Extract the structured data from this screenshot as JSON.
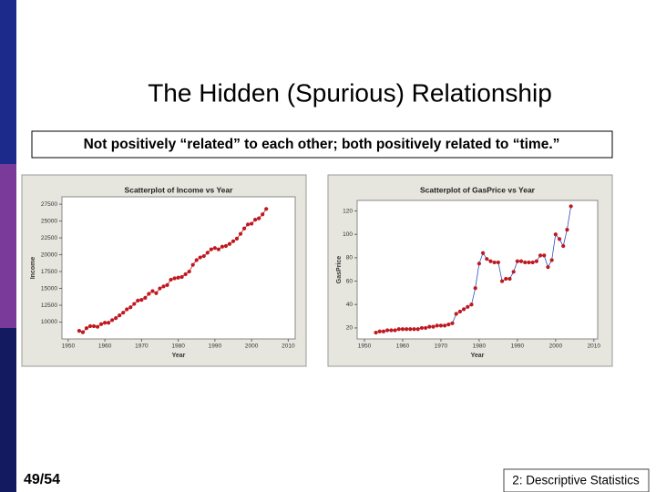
{
  "title": "The Hidden (Spurious) Relationship",
  "subtitle": "Not positively “related” to each other; both positively related to “time.”",
  "page": "49/54",
  "footer": "2: Descriptive Statistics",
  "chart_data": [
    {
      "type": "scatter",
      "title": "Scatterplot of Income vs Year",
      "xlabel": "Year",
      "ylabel": "Income",
      "color": "#c0181e",
      "line_color": "#c0181e",
      "x": [
        1953,
        1954,
        1955,
        1956,
        1957,
        1958,
        1959,
        1960,
        1961,
        1962,
        1963,
        1964,
        1965,
        1966,
        1967,
        1968,
        1969,
        1970,
        1971,
        1972,
        1973,
        1974,
        1975,
        1976,
        1977,
        1978,
        1979,
        1980,
        1981,
        1982,
        1983,
        1984,
        1985,
        1986,
        1987,
        1988,
        1989,
        1990,
        1991,
        1992,
        1993,
        1994,
        1995,
        1996,
        1997,
        1998,
        1999,
        2000,
        2001,
        2002,
        2003,
        2004
      ],
      "values": [
        8700,
        8500,
        9100,
        9400,
        9400,
        9300,
        9700,
        9900,
        9900,
        10300,
        10600,
        11000,
        11400,
        11900,
        12200,
        12700,
        13200,
        13300,
        13600,
        14200,
        14600,
        14300,
        15000,
        15300,
        15500,
        16300,
        16500,
        16600,
        16700,
        17100,
        17500,
        18500,
        19200,
        19600,
        19800,
        20300,
        20800,
        21000,
        20800,
        21200,
        21300,
        21600,
        22000,
        22400,
        23100,
        23900,
        24500,
        24600,
        25200,
        25400,
        26000,
        26800
      ],
      "xlim": [
        1948.3,
        2011.9
      ],
      "ylim": [
        7500,
        28600
      ],
      "xticks": [
        1950,
        1960,
        1970,
        1980,
        1990,
        2000,
        2010
      ],
      "yticks": [
        10000,
        12500,
        15000,
        17500,
        20000,
        22500,
        25000,
        27500
      ]
    },
    {
      "type": "scatter",
      "title": "Scatterplot of GasPrice vs Year",
      "xlabel": "Year",
      "ylabel": "GasPrice",
      "color": "#c0181e",
      "line_color": "#2b4fc4",
      "x": [
        1953,
        1954,
        1955,
        1956,
        1957,
        1958,
        1959,
        1960,
        1961,
        1962,
        1963,
        1964,
        1965,
        1966,
        1967,
        1968,
        1969,
        1970,
        1971,
        1972,
        1973,
        1974,
        1975,
        1976,
        1977,
        1978,
        1979,
        1980,
        1981,
        1982,
        1983,
        1984,
        1985,
        1986,
        1987,
        1988,
        1989,
        1990,
        1991,
        1992,
        1993,
        1994,
        1995,
        1996,
        1997,
        1998,
        1999,
        2000,
        2001,
        2002,
        2003,
        2004
      ],
      "values": [
        16,
        17,
        17,
        18,
        18,
        18,
        19,
        19,
        19,
        19,
        19,
        19,
        20,
        20,
        21,
        21,
        22,
        22,
        22,
        23,
        24,
        32,
        34,
        36,
        38,
        40,
        54,
        75,
        84,
        79,
        77,
        76,
        76,
        60,
        62,
        62,
        68,
        77,
        77,
        76,
        76,
        76,
        77,
        82,
        82,
        72,
        78,
        100,
        96,
        90,
        104,
        124
      ],
      "xlim": [
        1948.1,
        2011
      ],
      "ylim": [
        10.6,
        129
      ],
      "xticks": [
        1950,
        1960,
        1970,
        1980,
        1990,
        2000,
        2010
      ],
      "yticks": [
        20,
        40,
        60,
        80,
        100,
        120
      ]
    }
  ]
}
